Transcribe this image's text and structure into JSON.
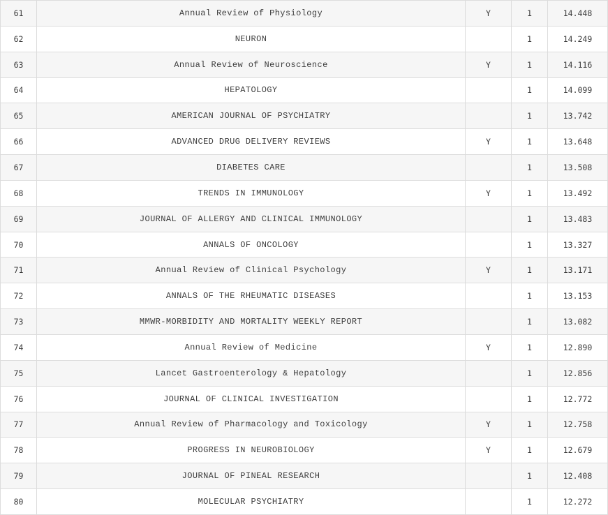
{
  "table": {
    "rows": [
      {
        "rank": "61",
        "title": "Annual Review of Physiology",
        "flag": "Y",
        "num": "1",
        "score": "14.448"
      },
      {
        "rank": "62",
        "title": "NEURON",
        "flag": "",
        "num": "1",
        "score": "14.249"
      },
      {
        "rank": "63",
        "title": "Annual Review of Neuroscience",
        "flag": "Y",
        "num": "1",
        "score": "14.116"
      },
      {
        "rank": "64",
        "title": "HEPATOLOGY",
        "flag": "",
        "num": "1",
        "score": "14.099"
      },
      {
        "rank": "65",
        "title": "AMERICAN JOURNAL OF PSYCHIATRY",
        "flag": "",
        "num": "1",
        "score": "13.742"
      },
      {
        "rank": "66",
        "title": "ADVANCED DRUG DELIVERY REVIEWS",
        "flag": "Y",
        "num": "1",
        "score": "13.648"
      },
      {
        "rank": "67",
        "title": "DIABETES CARE",
        "flag": "",
        "num": "1",
        "score": "13.508"
      },
      {
        "rank": "68",
        "title": "TRENDS IN IMMUNOLOGY",
        "flag": "Y",
        "num": "1",
        "score": "13.492"
      },
      {
        "rank": "69",
        "title": "JOURNAL OF ALLERGY AND CLINICAL IMMUNOLOGY",
        "flag": "",
        "num": "1",
        "score": "13.483"
      },
      {
        "rank": "70",
        "title": "ANNALS OF ONCOLOGY",
        "flag": "",
        "num": "1",
        "score": "13.327"
      },
      {
        "rank": "71",
        "title": "Annual Review of Clinical Psychology",
        "flag": "Y",
        "num": "1",
        "score": "13.171"
      },
      {
        "rank": "72",
        "title": "ANNALS OF THE RHEUMATIC DISEASES",
        "flag": "",
        "num": "1",
        "score": "13.153"
      },
      {
        "rank": "73",
        "title": "MMWR-MORBIDITY AND MORTALITY WEEKLY REPORT",
        "flag": "",
        "num": "1",
        "score": "13.082"
      },
      {
        "rank": "74",
        "title": "Annual Review of Medicine",
        "flag": "Y",
        "num": "1",
        "score": "12.890"
      },
      {
        "rank": "75",
        "title": "Lancet Gastroenterology & Hepatology",
        "flag": "",
        "num": "1",
        "score": "12.856"
      },
      {
        "rank": "76",
        "title": "JOURNAL OF CLINICAL INVESTIGATION",
        "flag": "",
        "num": "1",
        "score": "12.772"
      },
      {
        "rank": "77",
        "title": "Annual Review of Pharmacology and Toxicology",
        "flag": "Y",
        "num": "1",
        "score": "12.758"
      },
      {
        "rank": "78",
        "title": "PROGRESS IN NEUROBIOLOGY",
        "flag": "Y",
        "num": "1",
        "score": "12.679"
      },
      {
        "rank": "79",
        "title": "JOURNAL OF PINEAL RESEARCH",
        "flag": "",
        "num": "1",
        "score": "12.408"
      },
      {
        "rank": "80",
        "title": "MOLECULAR PSYCHIATRY",
        "flag": "",
        "num": "1",
        "score": "12.272"
      }
    ]
  },
  "colors": {
    "title_text": "#2f8e9c",
    "body_text": "#3d3d3d",
    "row_alt_background": "#f6f6f6",
    "border": "#dcdcdc"
  }
}
